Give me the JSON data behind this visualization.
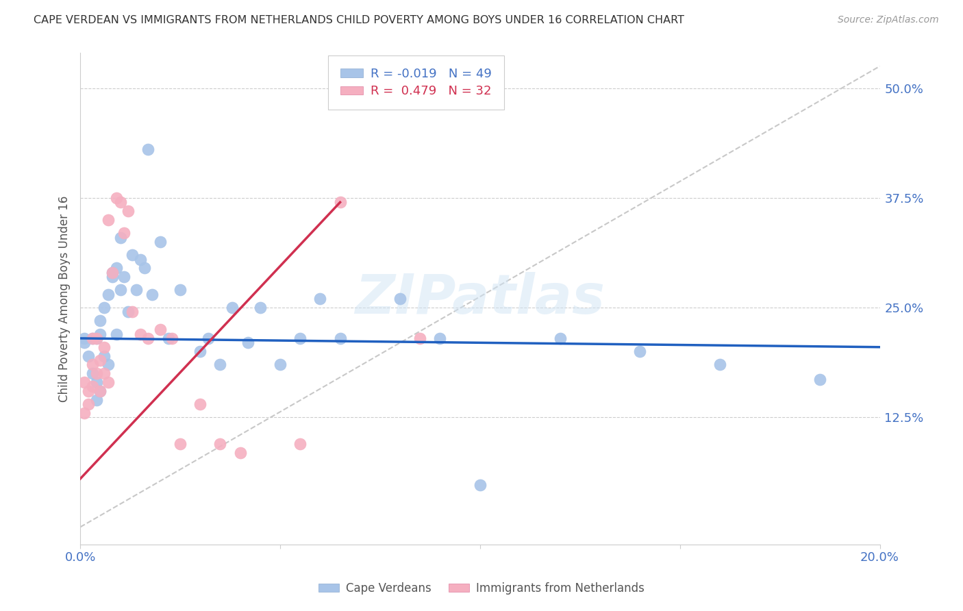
{
  "title": "CAPE VERDEAN VS IMMIGRANTS FROM NETHERLANDS CHILD POVERTY AMONG BOYS UNDER 16 CORRELATION CHART",
  "source": "Source: ZipAtlas.com",
  "ylabel": "Child Poverty Among Boys Under 16",
  "xlim": [
    0.0,
    0.2
  ],
  "ylim": [
    -0.02,
    0.54
  ],
  "yticks": [
    0.0,
    0.125,
    0.25,
    0.375,
    0.5
  ],
  "yticklabels": [
    "",
    "12.5%",
    "25.0%",
    "37.5%",
    "50.0%"
  ],
  "xticks": [
    0.0,
    0.05,
    0.1,
    0.15,
    0.2
  ],
  "xticklabels": [
    "0.0%",
    "",
    "",
    "",
    "20.0%"
  ],
  "legend1_r": "-0.019",
  "legend1_n": "49",
  "legend2_r": "0.479",
  "legend2_n": "32",
  "series1_label": "Cape Verdeans",
  "series2_label": "Immigrants from Netherlands",
  "color1": "#a8c4e8",
  "color2": "#f5afc0",
  "trendline1_color": "#2060c0",
  "trendline2_color": "#d03050",
  "diagonal_color": "#c8c8c8",
  "watermark": "ZIPatlas",
  "cape_verdean_x": [
    0.001,
    0.001,
    0.002,
    0.003,
    0.003,
    0.004,
    0.004,
    0.004,
    0.005,
    0.005,
    0.005,
    0.006,
    0.006,
    0.007,
    0.007,
    0.008,
    0.008,
    0.009,
    0.009,
    0.01,
    0.01,
    0.011,
    0.012,
    0.013,
    0.014,
    0.015,
    0.016,
    0.017,
    0.018,
    0.02,
    0.022,
    0.025,
    0.03,
    0.032,
    0.035,
    0.038,
    0.042,
    0.045,
    0.05,
    0.055,
    0.06,
    0.065,
    0.08,
    0.09,
    0.1,
    0.12,
    0.14,
    0.16,
    0.185
  ],
  "cape_verdean_y": [
    0.215,
    0.21,
    0.195,
    0.175,
    0.215,
    0.165,
    0.215,
    0.145,
    0.155,
    0.22,
    0.235,
    0.195,
    0.25,
    0.265,
    0.185,
    0.29,
    0.285,
    0.22,
    0.295,
    0.27,
    0.33,
    0.285,
    0.245,
    0.31,
    0.27,
    0.305,
    0.295,
    0.43,
    0.265,
    0.325,
    0.215,
    0.27,
    0.2,
    0.215,
    0.185,
    0.25,
    0.21,
    0.25,
    0.185,
    0.215,
    0.26,
    0.215,
    0.26,
    0.215,
    0.048,
    0.215,
    0.2,
    0.185,
    0.168
  ],
  "netherlands_x": [
    0.001,
    0.001,
    0.002,
    0.002,
    0.003,
    0.003,
    0.003,
    0.004,
    0.004,
    0.005,
    0.005,
    0.006,
    0.006,
    0.007,
    0.007,
    0.008,
    0.009,
    0.01,
    0.011,
    0.012,
    0.013,
    0.015,
    0.017,
    0.02,
    0.023,
    0.025,
    0.03,
    0.035,
    0.04,
    0.055,
    0.065,
    0.085
  ],
  "netherlands_y": [
    0.13,
    0.165,
    0.14,
    0.155,
    0.185,
    0.16,
    0.215,
    0.175,
    0.215,
    0.19,
    0.155,
    0.205,
    0.175,
    0.165,
    0.35,
    0.29,
    0.375,
    0.37,
    0.335,
    0.36,
    0.245,
    0.22,
    0.215,
    0.225,
    0.215,
    0.095,
    0.14,
    0.095,
    0.085,
    0.095,
    0.37,
    0.215
  ],
  "trendline1_x": [
    0.0,
    0.2
  ],
  "trendline1_y": [
    0.215,
    0.205
  ],
  "trendline2_x": [
    0.0,
    0.065
  ],
  "trendline2_y": [
    0.055,
    0.37
  ]
}
